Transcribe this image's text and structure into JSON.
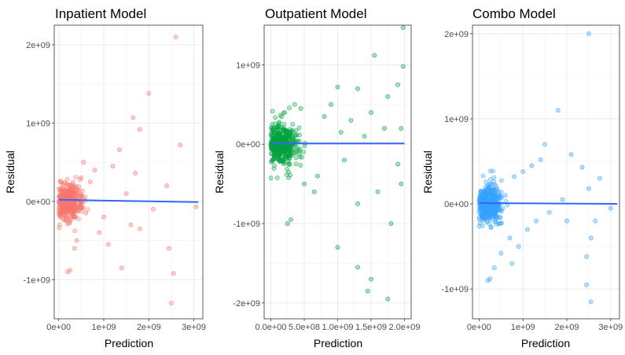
{
  "chart_data": [
    {
      "type": "scatter",
      "title": "Inpatient Model",
      "xlabel": "Prediction",
      "ylabel": "Residual",
      "xlim": [
        -100000000.0,
        3200000000.0
      ],
      "ylim": [
        -1500000000.0,
        2250000000.0
      ],
      "xticks": [
        0,
        1000000000.0,
        2000000000.0,
        3000000000.0
      ],
      "xtick_labels": [
        "0e+00",
        "1e+09",
        "2e+09",
        "3e+09"
      ],
      "yticks": [
        -1000000000.0,
        0,
        1000000000.0,
        2000000000.0
      ],
      "ytick_labels": [
        "-1e+09",
        "0e+00",
        "1e+09",
        "2e+09"
      ],
      "point_color": "#F8766D",
      "grid": true,
      "series": [
        {
          "points": [
            [
              2600000000.0,
              2100000000.0
            ],
            [
              2000000000.0,
              1380000000.0
            ],
            [
              1650000000.0,
              1070000000.0
            ],
            [
              1800000000.0,
              920000000.0
            ],
            [
              1350000000.0,
              660000000.0
            ],
            [
              2700000000.0,
              720000000.0
            ],
            [
              1700000000.0,
              360000000.0
            ],
            [
              2450000000.0,
              -600000000.0
            ],
            [
              2550000000.0,
              -920000000.0
            ],
            [
              2500000000.0,
              -1300000000.0
            ],
            [
              3050000000.0,
              -70000000.0
            ],
            [
              2400000000.0,
              200000000.0
            ],
            [
              1800000000.0,
              -350000000.0
            ],
            [
              1500000000.0,
              100000000.0
            ],
            [
              1000000000.0,
              -200000000.0
            ],
            [
              1200000000.0,
              450000000.0
            ],
            [
              550000000.0,
              500000000.0
            ],
            [
              800000000.0,
              400000000.0
            ],
            [
              500000000.0,
              300000000.0
            ],
            [
              400000000.0,
              -500000000.0
            ],
            [
              350000000.0,
              -600000000.0
            ],
            [
              200000000.0,
              -900000000.0
            ],
            [
              250000000.0,
              -880000000.0
            ],
            [
              900000000.0,
              -400000000.0
            ],
            [
              1100000000.0,
              -550000000.0
            ],
            [
              1400000000.0,
              -850000000.0
            ],
            [
              700000000.0,
              250000000.0
            ],
            [
              2100000000.0,
              -100000000.0
            ],
            [
              600000000.0,
              -150000000.0
            ],
            [
              1600000000.0,
              -300000000.0
            ]
          ]
        }
      ],
      "trend": [
        [
          0,
          20000000.0
        ],
        [
          3100000000.0,
          -10000000.0
        ]
      ],
      "trend_color": "#3366FF"
    },
    {
      "type": "scatter",
      "title": "Outpatient Model",
      "xlabel": "Prediction",
      "ylabel": "Residual",
      "xlim": [
        -100000000.0,
        2100000000.0
      ],
      "ylim": [
        -2200000000.0,
        1500000000.0
      ],
      "xticks": [
        0,
        500000000.0,
        1000000000.0,
        1500000000.0,
        2000000000.0
      ],
      "xtick_labels": [
        "0.0e+00",
        "5.0e+08",
        "1.0e+09",
        "1.5e+09",
        "2.0e+09"
      ],
      "yticks": [
        -2000000000.0,
        -1000000000.0,
        0,
        1000000000.0
      ],
      "ytick_labels": [
        "-2e+09",
        "-1e+09",
        "0e+00",
        "1e+09"
      ],
      "point_color": "#00A33E",
      "grid": true,
      "series": [
        {
          "points": [
            [
              1980000000.0,
              1470000000.0
            ],
            [
              1550000000.0,
              1120000000.0
            ],
            [
              1980000000.0,
              980000000.0
            ],
            [
              1900000000.0,
              750000000.0
            ],
            [
              1300000000.0,
              700000000.0
            ],
            [
              1750000000.0,
              600000000.0
            ],
            [
              1000000000.0,
              720000000.0
            ],
            [
              900000000.0,
              500000000.0
            ],
            [
              1500000000.0,
              400000000.0
            ],
            [
              1200000000.0,
              300000000.0
            ],
            [
              1700000000.0,
              200000000.0
            ],
            [
              1950000000.0,
              -500000000.0
            ],
            [
              1600000000.0,
              -600000000.0
            ],
            [
              1300000000.0,
              -750000000.0
            ],
            [
              1800000000.0,
              -1000000000.0
            ],
            [
              1000000000.0,
              -1300000000.0
            ],
            [
              1300000000.0,
              -1550000000.0
            ],
            [
              1500000000.0,
              -1700000000.0
            ],
            [
              1750000000.0,
              -1950000000.0
            ],
            [
              1450000000.0,
              -1850000000.0
            ],
            [
              250000000.0,
              -1000000000.0
            ],
            [
              300000000.0,
              -950000000.0
            ],
            [
              500000000.0,
              -500000000.0
            ],
            [
              700000000.0,
              -400000000.0
            ],
            [
              1100000000.0,
              -200000000.0
            ],
            [
              1400000000.0,
              100000000.0
            ],
            [
              800000000.0,
              350000000.0
            ],
            [
              1950000000.0,
              200000000.0
            ],
            [
              1050000000.0,
              150000000.0
            ],
            [
              650000000.0,
              -600000000.0
            ],
            [
              1900000000.0,
              -250000000.0
            ],
            [
              450000000.0,
              450000000.0
            ]
          ]
        }
      ],
      "trend": [
        [
          0,
          10000000.0
        ],
        [
          2000000000.0,
          10000000.0
        ]
      ],
      "trend_color": "#3366FF"
    },
    {
      "type": "scatter",
      "title": "Combo Model",
      "xlabel": "Prediction",
      "ylabel": "Residual",
      "xlim": [
        -150000000.0,
        3200000000.0
      ],
      "ylim": [
        -1350000000.0,
        2100000000.0
      ],
      "xticks": [
        0,
        1000000000.0,
        2000000000.0,
        3000000000.0
      ],
      "xtick_labels": [
        "0e+00",
        "1e+09",
        "2e+09",
        "3e+09"
      ],
      "yticks": [
        -1000000000.0,
        0,
        1000000000.0,
        2000000000.0
      ],
      "ytick_labels": [
        "-1e+09",
        "0e+00",
        "1e+09",
        "2e+09"
      ],
      "point_color": "#35A2FF",
      "grid": true,
      "series": [
        {
          "points": [
            [
              2500000000.0,
              2000000000.0
            ],
            [
              1800000000.0,
              1100000000.0
            ],
            [
              1500000000.0,
              700000000.0
            ],
            [
              2100000000.0,
              580000000.0
            ],
            [
              1400000000.0,
              520000000.0
            ],
            [
              1200000000.0,
              450000000.0
            ],
            [
              2350000000.0,
              430000000.0
            ],
            [
              1000000000.0,
              380000000.0
            ],
            [
              800000000.0,
              320000000.0
            ],
            [
              2750000000.0,
              300000000.0
            ],
            [
              2500000000.0,
              180000000.0
            ],
            [
              3000000000.0,
              -50000000.0
            ],
            [
              2000000000.0,
              -200000000.0
            ],
            [
              2550000000.0,
              -400000000.0
            ],
            [
              2450000000.0,
              -620000000.0
            ],
            [
              2550000000.0,
              -1150000000.0
            ],
            [
              2450000000.0,
              -950000000.0
            ],
            [
              250000000.0,
              -880000000.0
            ],
            [
              200000000.0,
              -900000000.0
            ],
            [
              350000000.0,
              -750000000.0
            ],
            [
              500000000.0,
              -580000000.0
            ],
            [
              700000000.0,
              -400000000.0
            ],
            [
              1100000000.0,
              -300000000.0
            ],
            [
              1300000000.0,
              -200000000.0
            ],
            [
              600000000.0,
              100000000.0
            ],
            [
              1600000000.0,
              -100000000.0
            ],
            [
              1900000000.0,
              50000000.0
            ],
            [
              900000000.0,
              -500000000.0
            ],
            [
              750000000.0,
              -700000000.0
            ],
            [
              2650000000.0,
              -200000000.0
            ]
          ]
        }
      ],
      "trend": [
        [
          0,
          10000000.0
        ],
        [
          3150000000.0,
          0.0
        ]
      ],
      "trend_color": "#3366FF"
    }
  ]
}
